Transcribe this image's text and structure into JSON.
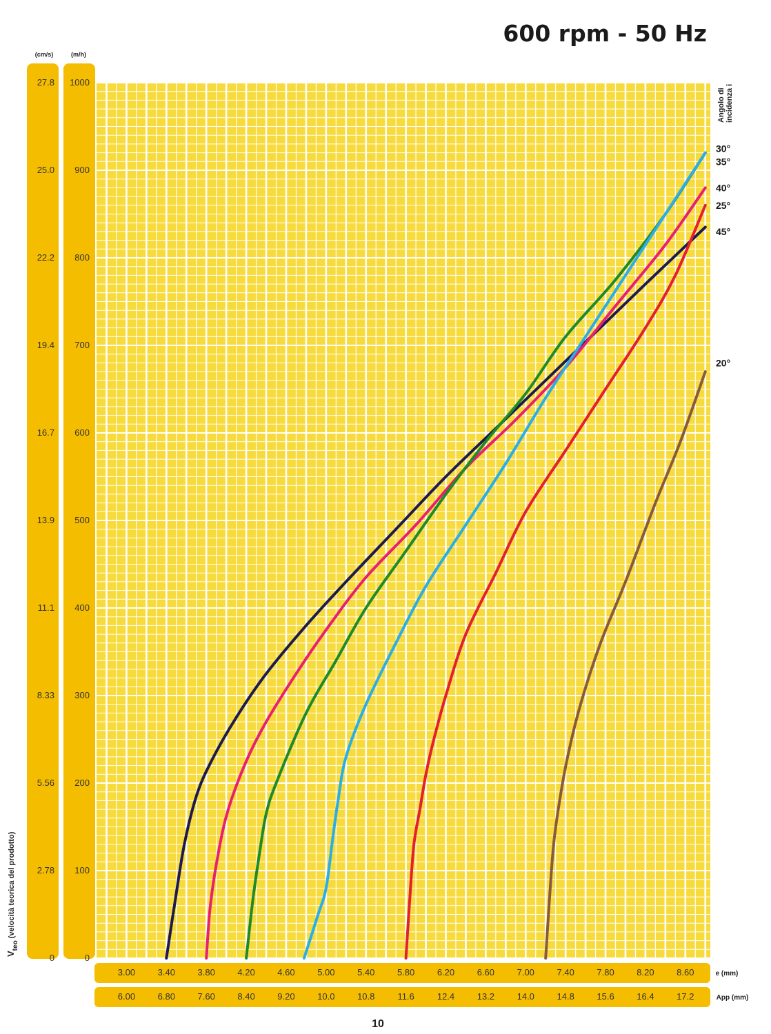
{
  "chart_data": {
    "type": "line",
    "title": "600 rpm - 50 Hz",
    "ylabel_left": "(cm/s)",
    "ylabel_right": "(m/h)",
    "y_axis_caption_v": "V",
    "y_axis_caption_sub": "teo",
    "y_axis_caption_rest": " (velocità teorica del prodotto)",
    "xlabel_e": "e (mm)",
    "xlabel_app": "App (mm)",
    "legend_title_line1": "Angolo di",
    "legend_title_line2": "incidenza i",
    "page_number": "10",
    "xlim": [
      2.7,
      8.85
    ],
    "ylim": [
      0,
      1000
    ],
    "y_ticks_mh": [
      "0",
      "100",
      "200",
      "300",
      "400",
      "500",
      "600",
      "700",
      "800",
      "900",
      "1000"
    ],
    "y_ticks_cms": [
      "0",
      "2.78",
      "5.56",
      "8.33",
      "11.1",
      "13.9",
      "16.7",
      "19.4",
      "22.2",
      "25.0",
      "27.8"
    ],
    "x_ticks_e": [
      {
        "x": 3.0,
        "label": "3.00"
      },
      {
        "x": 3.4,
        "label": "3.40"
      },
      {
        "x": 3.8,
        "label": "3.80"
      },
      {
        "x": 4.2,
        "label": "4.20"
      },
      {
        "x": 4.6,
        "label": "4.60"
      },
      {
        "x": 5.0,
        "label": "5.00"
      },
      {
        "x": 5.4,
        "label": "5.40"
      },
      {
        "x": 5.8,
        "label": "5.80"
      },
      {
        "x": 6.2,
        "label": "6.20"
      },
      {
        "x": 6.6,
        "label": "6.60"
      },
      {
        "x": 7.0,
        "label": "7.00"
      },
      {
        "x": 7.4,
        "label": "7.40"
      },
      {
        "x": 7.8,
        "label": "7.80"
      },
      {
        "x": 8.2,
        "label": "8.20"
      },
      {
        "x": 8.6,
        "label": "8.60"
      }
    ],
    "x_ticks_app": [
      {
        "x": 3.0,
        "label": "6.00"
      },
      {
        "x": 3.4,
        "label": "6.80"
      },
      {
        "x": 3.8,
        "label": "7.60"
      },
      {
        "x": 4.2,
        "label": "8.40"
      },
      {
        "x": 4.6,
        "label": "9.20"
      },
      {
        "x": 5.0,
        "label": "10.0"
      },
      {
        "x": 5.4,
        "label": "10.8"
      },
      {
        "x": 5.8,
        "label": "11.6"
      },
      {
        "x": 6.2,
        "label": "12.4"
      },
      {
        "x": 6.6,
        "label": "13.2"
      },
      {
        "x": 7.0,
        "label": "14.0"
      },
      {
        "x": 7.4,
        "label": "14.8"
      },
      {
        "x": 7.8,
        "label": "15.6"
      },
      {
        "x": 8.2,
        "label": "16.4"
      },
      {
        "x": 8.6,
        "label": "17.2"
      }
    ],
    "colors": {
      "band": "#f5bd00",
      "plot_bg": "#f7da3c",
      "grid": "#ffffff"
    },
    "series": [
      {
        "name": "45°",
        "color": "#1d1b4e",
        "points": [
          [
            3.4,
            0
          ],
          [
            3.48,
            60
          ],
          [
            3.58,
            130
          ],
          [
            3.7,
            185
          ],
          [
            3.85,
            225
          ],
          [
            4.1,
            275
          ],
          [
            4.4,
            325
          ],
          [
            4.8,
            380
          ],
          [
            5.2,
            430
          ],
          [
            5.7,
            490
          ],
          [
            6.2,
            550
          ],
          [
            6.7,
            605
          ],
          [
            7.2,
            660
          ],
          [
            7.7,
            715
          ],
          [
            8.2,
            770
          ],
          [
            8.8,
            835
          ]
        ]
      },
      {
        "name": "40°",
        "color": "#e8206f",
        "points": [
          [
            3.8,
            0
          ],
          [
            3.84,
            60
          ],
          [
            3.92,
            120
          ],
          [
            4.02,
            170
          ],
          [
            4.2,
            225
          ],
          [
            4.4,
            270
          ],
          [
            4.7,
            325
          ],
          [
            5.0,
            375
          ],
          [
            5.4,
            435
          ],
          [
            5.9,
            495
          ],
          [
            6.4,
            560
          ],
          [
            6.9,
            615
          ],
          [
            7.4,
            675
          ],
          [
            7.9,
            745
          ],
          [
            8.4,
            815
          ],
          [
            8.8,
            880
          ]
        ]
      },
      {
        "name": "30°",
        "color": "#1f8a2a",
        "points": [
          [
            4.2,
            0
          ],
          [
            4.27,
            70
          ],
          [
            4.34,
            125
          ],
          [
            4.4,
            165
          ],
          [
            4.5,
            200
          ],
          [
            4.8,
            280
          ],
          [
            5.1,
            340
          ],
          [
            5.4,
            400
          ],
          [
            5.8,
            465
          ],
          [
            6.2,
            530
          ],
          [
            6.6,
            590
          ],
          [
            7.0,
            645
          ],
          [
            7.4,
            710
          ],
          [
            7.9,
            775
          ],
          [
            8.4,
            850
          ],
          [
            8.8,
            920
          ]
        ]
      },
      {
        "name": "35°",
        "color": "#2aaee6",
        "points": [
          [
            4.78,
            0
          ],
          [
            4.92,
            50
          ],
          [
            5.0,
            80
          ],
          [
            5.07,
            140
          ],
          [
            5.12,
            180
          ],
          [
            5.2,
            230
          ],
          [
            5.4,
            290
          ],
          [
            5.7,
            360
          ],
          [
            6.0,
            425
          ],
          [
            6.4,
            495
          ],
          [
            6.8,
            565
          ],
          [
            7.2,
            640
          ],
          [
            7.6,
            710
          ],
          [
            8.0,
            780
          ],
          [
            8.4,
            850
          ],
          [
            8.8,
            920
          ]
        ]
      },
      {
        "name": "25°",
        "color": "#e3202f",
        "points": [
          [
            5.8,
            0
          ],
          [
            5.84,
            70
          ],
          [
            5.88,
            130
          ],
          [
            5.94,
            170
          ],
          [
            6.0,
            210
          ],
          [
            6.08,
            250
          ],
          [
            6.2,
            300
          ],
          [
            6.4,
            370
          ],
          [
            6.7,
            440
          ],
          [
            7.0,
            510
          ],
          [
            7.4,
            580
          ],
          [
            7.8,
            650
          ],
          [
            8.2,
            720
          ],
          [
            8.5,
            780
          ],
          [
            8.8,
            860
          ]
        ]
      },
      {
        "name": "20°",
        "color": "#8a5a3c",
        "points": [
          [
            7.2,
            0
          ],
          [
            7.24,
            70
          ],
          [
            7.28,
            130
          ],
          [
            7.34,
            180
          ],
          [
            7.42,
            230
          ],
          [
            7.55,
            290
          ],
          [
            7.75,
            360
          ],
          [
            8.0,
            430
          ],
          [
            8.3,
            520
          ],
          [
            8.55,
            590
          ],
          [
            8.8,
            670
          ]
        ]
      }
    ],
    "legend_entries": [
      {
        "label": "30°",
        "y": 925
      },
      {
        "label": "35°",
        "y": 910
      },
      {
        "label": "40°",
        "y": 880
      },
      {
        "label": "25°",
        "y": 860
      },
      {
        "label": "45°",
        "y": 830
      },
      {
        "label": "20°",
        "y": 680
      }
    ]
  }
}
